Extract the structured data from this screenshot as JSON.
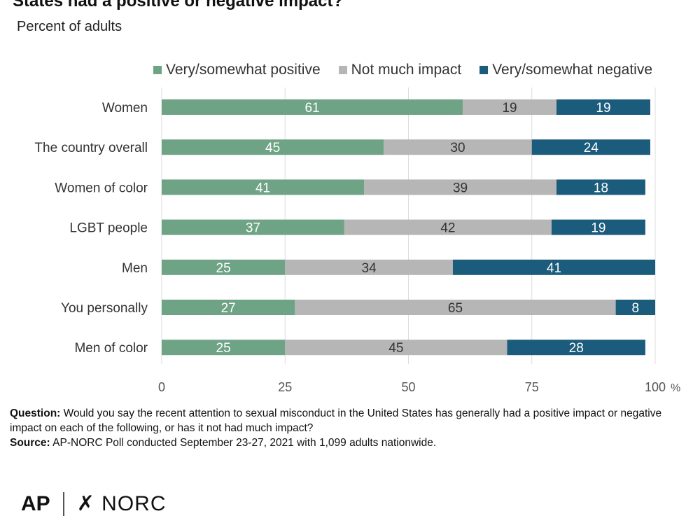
{
  "title": "States had a positive or negative impact?",
  "subtitle": "Percent of adults",
  "footnote": {
    "question_label": "Question:",
    "question_text": "Would you say the recent attention to sexual misconduct in the United States has generally had a positive impact or negative impact on each of the following, or has it not had much impact?",
    "source_label": "Source:",
    "source_text": "AP-NORC Poll conducted September 23-27, 2021 with 1,099 adults nationwide."
  },
  "logo": {
    "ap": "AP",
    "norc": "✗ NORC"
  },
  "colors": {
    "positive": "#6fa386",
    "neutral": "#b6b6b6",
    "negative": "#1b5c7c"
  },
  "chart_data": {
    "type": "bar",
    "orientation": "horizontal",
    "stacked": true,
    "categories": [
      "Women",
      "The country overall",
      "Women of color",
      "LGBT people",
      "Men",
      "You personally",
      "Men of color"
    ],
    "series": [
      {
        "name": "Very/somewhat positive",
        "values": [
          61,
          45,
          41,
          37,
          25,
          27,
          25
        ]
      },
      {
        "name": "Not much impact",
        "values": [
          19,
          30,
          39,
          42,
          34,
          65,
          45
        ]
      },
      {
        "name": "Very/somewhat negative",
        "values": [
          19,
          24,
          18,
          19,
          41,
          8,
          28
        ]
      }
    ],
    "xlim": [
      0,
      100
    ],
    "xticks": [
      "0",
      "25",
      "50",
      "75",
      "100"
    ],
    "x_unit": "%",
    "legend_position": "top",
    "grid": true
  }
}
